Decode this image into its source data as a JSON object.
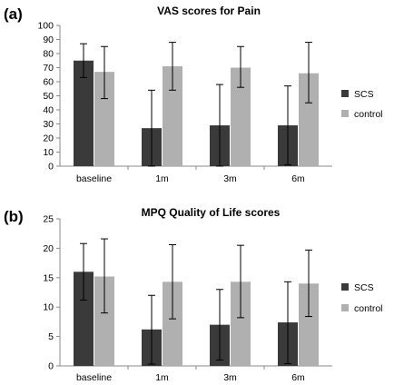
{
  "chart_data": [
    {
      "panel_label": "(a)",
      "type": "bar",
      "title": "VAS scores for Pain",
      "xlabel": "",
      "ylabel": "",
      "ylim": [
        0,
        100
      ],
      "yticks": [
        0,
        10,
        20,
        30,
        40,
        50,
        60,
        70,
        80,
        90,
        100
      ],
      "categories": [
        "baseline",
        "1m",
        "3m",
        "6m"
      ],
      "legend_position": "right",
      "series": [
        {
          "name": "SCS",
          "color": "#3a3a3a",
          "values": [
            75,
            27,
            29,
            29
          ],
          "error_low": [
            63,
            0,
            0,
            1
          ],
          "error_high": [
            87,
            54,
            58,
            57
          ]
        },
        {
          "name": "control",
          "color": "#b0b0b0",
          "values": [
            67,
            71,
            70,
            66
          ],
          "error_low": [
            48,
            54,
            56,
            45
          ],
          "error_high": [
            85,
            88,
            85,
            88
          ]
        }
      ]
    },
    {
      "panel_label": "(b)",
      "type": "bar",
      "title": "MPQ Quality of Life scores",
      "xlabel": "",
      "ylabel": "",
      "ylim": [
        0,
        25
      ],
      "yticks": [
        0,
        5,
        10,
        15,
        20,
        25
      ],
      "categories": [
        "baseline",
        "1m",
        "3m",
        "6m"
      ],
      "legend_position": "right",
      "series": [
        {
          "name": "SCS",
          "color": "#3a3a3a",
          "values": [
            16,
            6.2,
            7,
            7.4
          ],
          "error_low": [
            11.2,
            0.3,
            1,
            0.4
          ],
          "error_high": [
            20.8,
            12,
            13,
            14.3
          ]
        },
        {
          "name": "control",
          "color": "#b0b0b0",
          "values": [
            15.2,
            14.3,
            14.3,
            14
          ],
          "error_low": [
            9,
            8,
            8.2,
            8.4
          ],
          "error_high": [
            21.6,
            20.6,
            20.5,
            19.7
          ]
        }
      ]
    }
  ]
}
